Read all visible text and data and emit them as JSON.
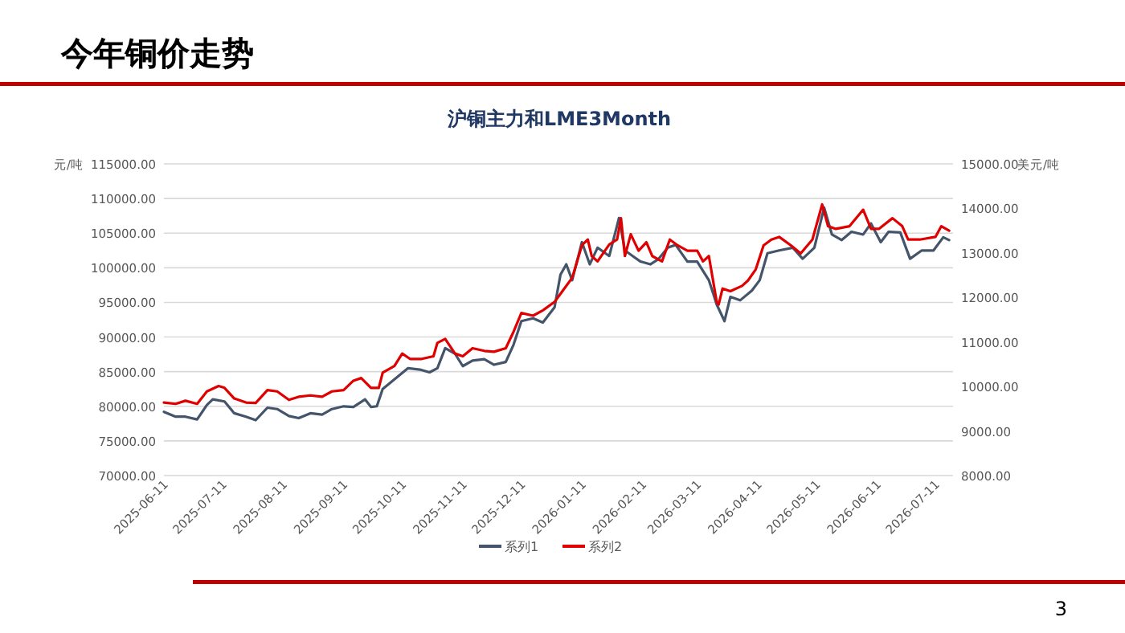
{
  "chart_data": {
    "type": "line",
    "title": "今年铜价走势",
    "subtitle": "沪铜主力和LME3Month",
    "ylabel": "元/吨",
    "y2label": "美元/吨",
    "annotations": [
      "3"
    ],
    "grid": "y",
    "legend": "bottom",
    "xlim": [
      "2025-06-11",
      "2026-07-20"
    ],
    "xticks": [
      "2025-06-11",
      "2025-07-11",
      "2025-08-11",
      "2025-09-11",
      "2025-10-11",
      "2025-11-11",
      "2025-12-11",
      "2026-01-11",
      "2026-02-11",
      "2026-03-11",
      "2026-04-11",
      "2026-05-11",
      "2026-06-11",
      "2026-07-11"
    ],
    "ylim": [
      70000,
      115000
    ],
    "yticks": [
      {
        "value": 70000,
        "label": "70000.00"
      },
      {
        "value": 75000,
        "label": "75000.00"
      },
      {
        "value": 80000,
        "label": "80000.00"
      },
      {
        "value": 85000,
        "label": "85000.00"
      },
      {
        "value": 90000,
        "label": "90000.00"
      },
      {
        "value": 95000,
        "label": "95000.00"
      },
      {
        "value": 100000,
        "label": "100000.00"
      },
      {
        "value": 105000,
        "label": "105000.00"
      },
      {
        "value": 110000,
        "label": "110000.00"
      },
      {
        "value": 115000,
        "label": "115000.00"
      }
    ],
    "y2lim": [
      8000,
      15000
    ],
    "y2ticks": [
      {
        "value": 8000,
        "label": "8000.00"
      },
      {
        "value": 9000,
        "label": "9000.00"
      },
      {
        "value": 10000,
        "label": "10000.00"
      },
      {
        "value": 11000,
        "label": "11000.00"
      },
      {
        "value": 12000,
        "label": "12000.00"
      },
      {
        "value": 13000,
        "label": "13000.00"
      },
      {
        "value": 14000,
        "label": "14000.00"
      },
      {
        "value": 15000,
        "label": "15000.00"
      }
    ],
    "series": [
      {
        "name": "系列1",
        "color": "#44546a",
        "x": [
          "2025-06-11",
          "2025-06-17",
          "2025-06-22",
          "2025-06-28",
          "2025-07-03",
          "2025-07-06",
          "2025-07-12",
          "2025-07-17",
          "2025-07-23",
          "2025-07-28",
          "2025-08-03",
          "2025-08-08",
          "2025-08-14",
          "2025-08-19",
          "2025-08-25",
          "2025-08-31",
          "2025-09-05",
          "2025-09-11",
          "2025-09-16",
          "2025-09-22",
          "2025-09-25",
          "2025-09-28",
          "2025-10-01",
          "2025-10-07",
          "2025-10-14",
          "2025-10-20",
          "2025-10-25",
          "2025-10-29",
          "2025-11-02",
          "2025-11-07",
          "2025-11-11",
          "2025-11-16",
          "2025-11-22",
          "2025-11-27",
          "2025-12-03",
          "2025-12-07",
          "2025-12-11",
          "2025-12-17",
          "2025-12-22",
          "2025-12-28",
          "2025-12-31",
          "2026-01-03",
          "2026-01-06",
          "2026-01-11",
          "2026-01-15",
          "2026-01-19",
          "2026-01-25",
          "2026-01-30",
          "2026-02-02",
          "2026-02-06",
          "2026-02-10",
          "2026-02-15",
          "2026-02-19",
          "2026-02-24",
          "2026-02-28",
          "2026-03-06",
          "2026-03-11",
          "2026-03-17",
          "2026-03-21",
          "2026-03-25",
          "2026-03-28",
          "2026-04-02",
          "2026-04-08",
          "2026-04-12",
          "2026-04-16",
          "2026-04-22",
          "2026-04-29",
          "2026-05-04",
          "2026-05-10",
          "2026-05-15",
          "2026-05-19",
          "2026-05-24",
          "2026-05-29",
          "2026-06-04",
          "2026-06-08",
          "2026-06-13",
          "2026-06-17",
          "2026-06-23",
          "2026-06-28",
          "2026-07-04",
          "2026-07-10",
          "2026-07-15",
          "2026-07-18"
        ],
        "values": [
          79200,
          78500,
          78500,
          78100,
          80200,
          81000,
          80700,
          79000,
          78500,
          78000,
          79800,
          79600,
          78600,
          78300,
          79000,
          78800,
          79600,
          80000,
          79900,
          81000,
          79900,
          80000,
          82500,
          83900,
          85500,
          85300,
          84900,
          85500,
          88400,
          87600,
          85800,
          86600,
          86800,
          86000,
          86400,
          88900,
          92300,
          92700,
          92100,
          94300,
          99000,
          100500,
          98200,
          103700,
          100500,
          102900,
          101700,
          107200,
          102500,
          101700,
          100900,
          100500,
          101200,
          102900,
          103300,
          100900,
          100900,
          98200,
          94700,
          92300,
          95800,
          95300,
          96700,
          98200,
          102100,
          102500,
          102900,
          101300,
          102900,
          108700,
          104800,
          104000,
          105200,
          104800,
          106400,
          103700,
          105200,
          105100,
          101300,
          102500,
          102500,
          104400,
          104000
        ]
      },
      {
        "name": "系列2",
        "color": "#e00000",
        "axis": "y2",
        "x": [
          "2025-06-11",
          "2025-06-17",
          "2025-06-22",
          "2025-06-28",
          "2025-07-03",
          "2025-07-09",
          "2025-07-12",
          "2025-07-17",
          "2025-07-23",
          "2025-07-28",
          "2025-08-03",
          "2025-08-08",
          "2025-08-14",
          "2025-08-19",
          "2025-08-25",
          "2025-08-31",
          "2025-09-05",
          "2025-09-11",
          "2025-09-16",
          "2025-09-20",
          "2025-09-25",
          "2025-09-29",
          "2025-10-01",
          "2025-10-07",
          "2025-10-11",
          "2025-10-15",
          "2025-10-21",
          "2025-10-27",
          "2025-10-29",
          "2025-11-02",
          "2025-11-07",
          "2025-11-11",
          "2025-11-16",
          "2025-11-22",
          "2025-11-27",
          "2025-12-03",
          "2025-12-07",
          "2025-12-11",
          "2025-12-17",
          "2025-12-22",
          "2025-12-28",
          "2026-01-01",
          "2026-01-06",
          "2026-01-11",
          "2026-01-14",
          "2026-01-16",
          "2026-01-19",
          "2026-01-25",
          "2026-01-29",
          "2026-01-31",
          "2026-02-02",
          "2026-02-05",
          "2026-02-09",
          "2026-02-13",
          "2026-02-16",
          "2026-02-21",
          "2026-02-25",
          "2026-03-01",
          "2026-03-06",
          "2026-03-11",
          "2026-03-14",
          "2026-03-17",
          "2026-03-21",
          "2026-03-22",
          "2026-03-24",
          "2026-03-28",
          "2026-04-03",
          "2026-04-06",
          "2026-04-10",
          "2026-04-14",
          "2026-04-18",
          "2026-04-22",
          "2026-04-28",
          "2026-05-03",
          "2026-05-09",
          "2026-05-14",
          "2026-05-17",
          "2026-05-21",
          "2026-05-28",
          "2026-06-04",
          "2026-06-08",
          "2026-06-12",
          "2026-06-19",
          "2026-06-24",
          "2026-06-27",
          "2026-07-03",
          "2026-07-11",
          "2026-07-14",
          "2026-07-18"
        ],
        "values": [
          9640,
          9610,
          9680,
          9610,
          9890,
          10010,
          9970,
          9730,
          9640,
          9630,
          9920,
          9890,
          9700,
          9770,
          9800,
          9770,
          9890,
          9920,
          10130,
          10190,
          9970,
          9970,
          10310,
          10460,
          10740,
          10620,
          10620,
          10680,
          10980,
          11070,
          10740,
          10680,
          10860,
          10800,
          10780,
          10860,
          11230,
          11650,
          11590,
          11710,
          11900,
          12140,
          12440,
          13170,
          13300,
          12930,
          12810,
          13190,
          13300,
          13780,
          12930,
          13420,
          13050,
          13240,
          12930,
          12810,
          13300,
          13170,
          13050,
          13050,
          12810,
          12930,
          11900,
          11840,
          12200,
          12140,
          12260,
          12380,
          12630,
          13170,
          13300,
          13360,
          13170,
          12990,
          13300,
          14090,
          13600,
          13540,
          13600,
          13970,
          13540,
          13540,
          13780,
          13600,
          13300,
          13300,
          13360,
          13600,
          13500
        ]
      }
    ]
  }
}
